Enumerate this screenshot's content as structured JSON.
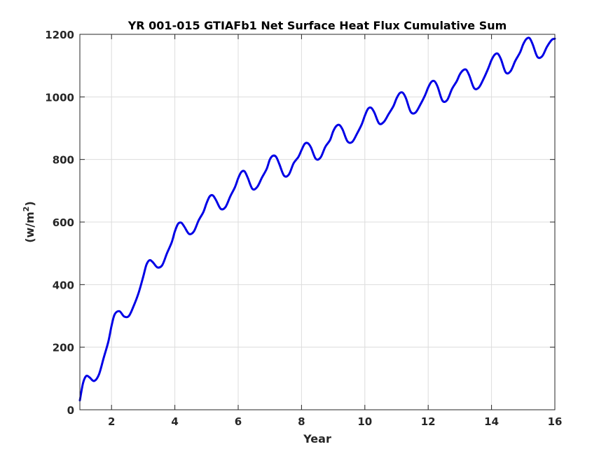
{
  "chart_data": {
    "type": "line",
    "title": "YR 001-015 GTIAFb1 Net Surface Heat Flux  Cumulative Sum",
    "xlabel": "Year",
    "ylabel_prefix": "(w/m",
    "ylabel_superscript": "2",
    "ylabel_suffix": ")",
    "xlim": [
      1,
      16
    ],
    "ylim": [
      0,
      1200
    ],
    "xticks": [
      2,
      4,
      6,
      8,
      10,
      12,
      14,
      16
    ],
    "xtick_labels": [
      "2",
      "4",
      "6",
      "8",
      "10",
      "12",
      "14",
      "16"
    ],
    "yticks": [
      0,
      200,
      400,
      600,
      800,
      1000,
      1200
    ],
    "ytick_labels": [
      "0",
      "200",
      "400",
      "600",
      "800",
      "1000",
      "1200"
    ],
    "grid": true,
    "series": [
      {
        "color": "#0000e6",
        "x": [
          1.0,
          1.1,
          1.2,
          1.3,
          1.45,
          1.6,
          1.75,
          1.9,
          2.0,
          2.1,
          2.25,
          2.4,
          2.55,
          2.7,
          2.85,
          3.0,
          3.1,
          3.2,
          3.3,
          3.45,
          3.6,
          3.75,
          3.9,
          4.0,
          4.1,
          4.2,
          4.3,
          4.45,
          4.6,
          4.75,
          4.9,
          5.0,
          5.1,
          5.2,
          5.3,
          5.45,
          5.6,
          5.75,
          5.9,
          6.0,
          6.1,
          6.2,
          6.3,
          6.45,
          6.6,
          6.75,
          6.9,
          7.0,
          7.1,
          7.2,
          7.3,
          7.45,
          7.6,
          7.75,
          7.9,
          8.0,
          8.1,
          8.2,
          8.3,
          8.45,
          8.6,
          8.75,
          8.9,
          9.0,
          9.1,
          9.2,
          9.3,
          9.45,
          9.6,
          9.75,
          9.9,
          10.0,
          10.1,
          10.2,
          10.3,
          10.45,
          10.6,
          10.75,
          10.9,
          11.0,
          11.1,
          11.2,
          11.3,
          11.45,
          11.6,
          11.75,
          11.9,
          12.0,
          12.1,
          12.2,
          12.3,
          12.45,
          12.6,
          12.75,
          12.9,
          13.0,
          13.1,
          13.2,
          13.3,
          13.45,
          13.6,
          13.75,
          13.9,
          14.0,
          14.1,
          14.2,
          14.3,
          14.45,
          14.6,
          14.75,
          14.9,
          15.0,
          15.1,
          15.2,
          15.3,
          15.45,
          15.6,
          15.75,
          15.9,
          16.0
        ],
        "y": [
          30,
          85,
          108,
          104,
          92,
          112,
          165,
          218,
          268,
          305,
          315,
          298,
          300,
          332,
          372,
          425,
          463,
          478,
          472,
          455,
          462,
          500,
          535,
          570,
          594,
          598,
          585,
          562,
          570,
          605,
          632,
          660,
          682,
          685,
          670,
          642,
          648,
          682,
          712,
          740,
          760,
          762,
          742,
          706,
          712,
          742,
          770,
          800,
          812,
          808,
          785,
          748,
          752,
          788,
          808,
          830,
          850,
          852,
          838,
          802,
          806,
          840,
          862,
          890,
          907,
          910,
          895,
          858,
          856,
          882,
          912,
          940,
          962,
          965,
          950,
          915,
          920,
          945,
          970,
          995,
          1012,
          1013,
          995,
          952,
          950,
          975,
          1005,
          1030,
          1048,
          1050,
          1032,
          988,
          990,
          1025,
          1050,
          1072,
          1085,
          1087,
          1068,
          1028,
          1030,
          1058,
          1092,
          1118,
          1135,
          1138,
          1120,
          1078,
          1082,
          1115,
          1142,
          1168,
          1185,
          1188,
          1168,
          1128,
          1130,
          1160,
          1182,
          1186
        ]
      }
    ]
  }
}
